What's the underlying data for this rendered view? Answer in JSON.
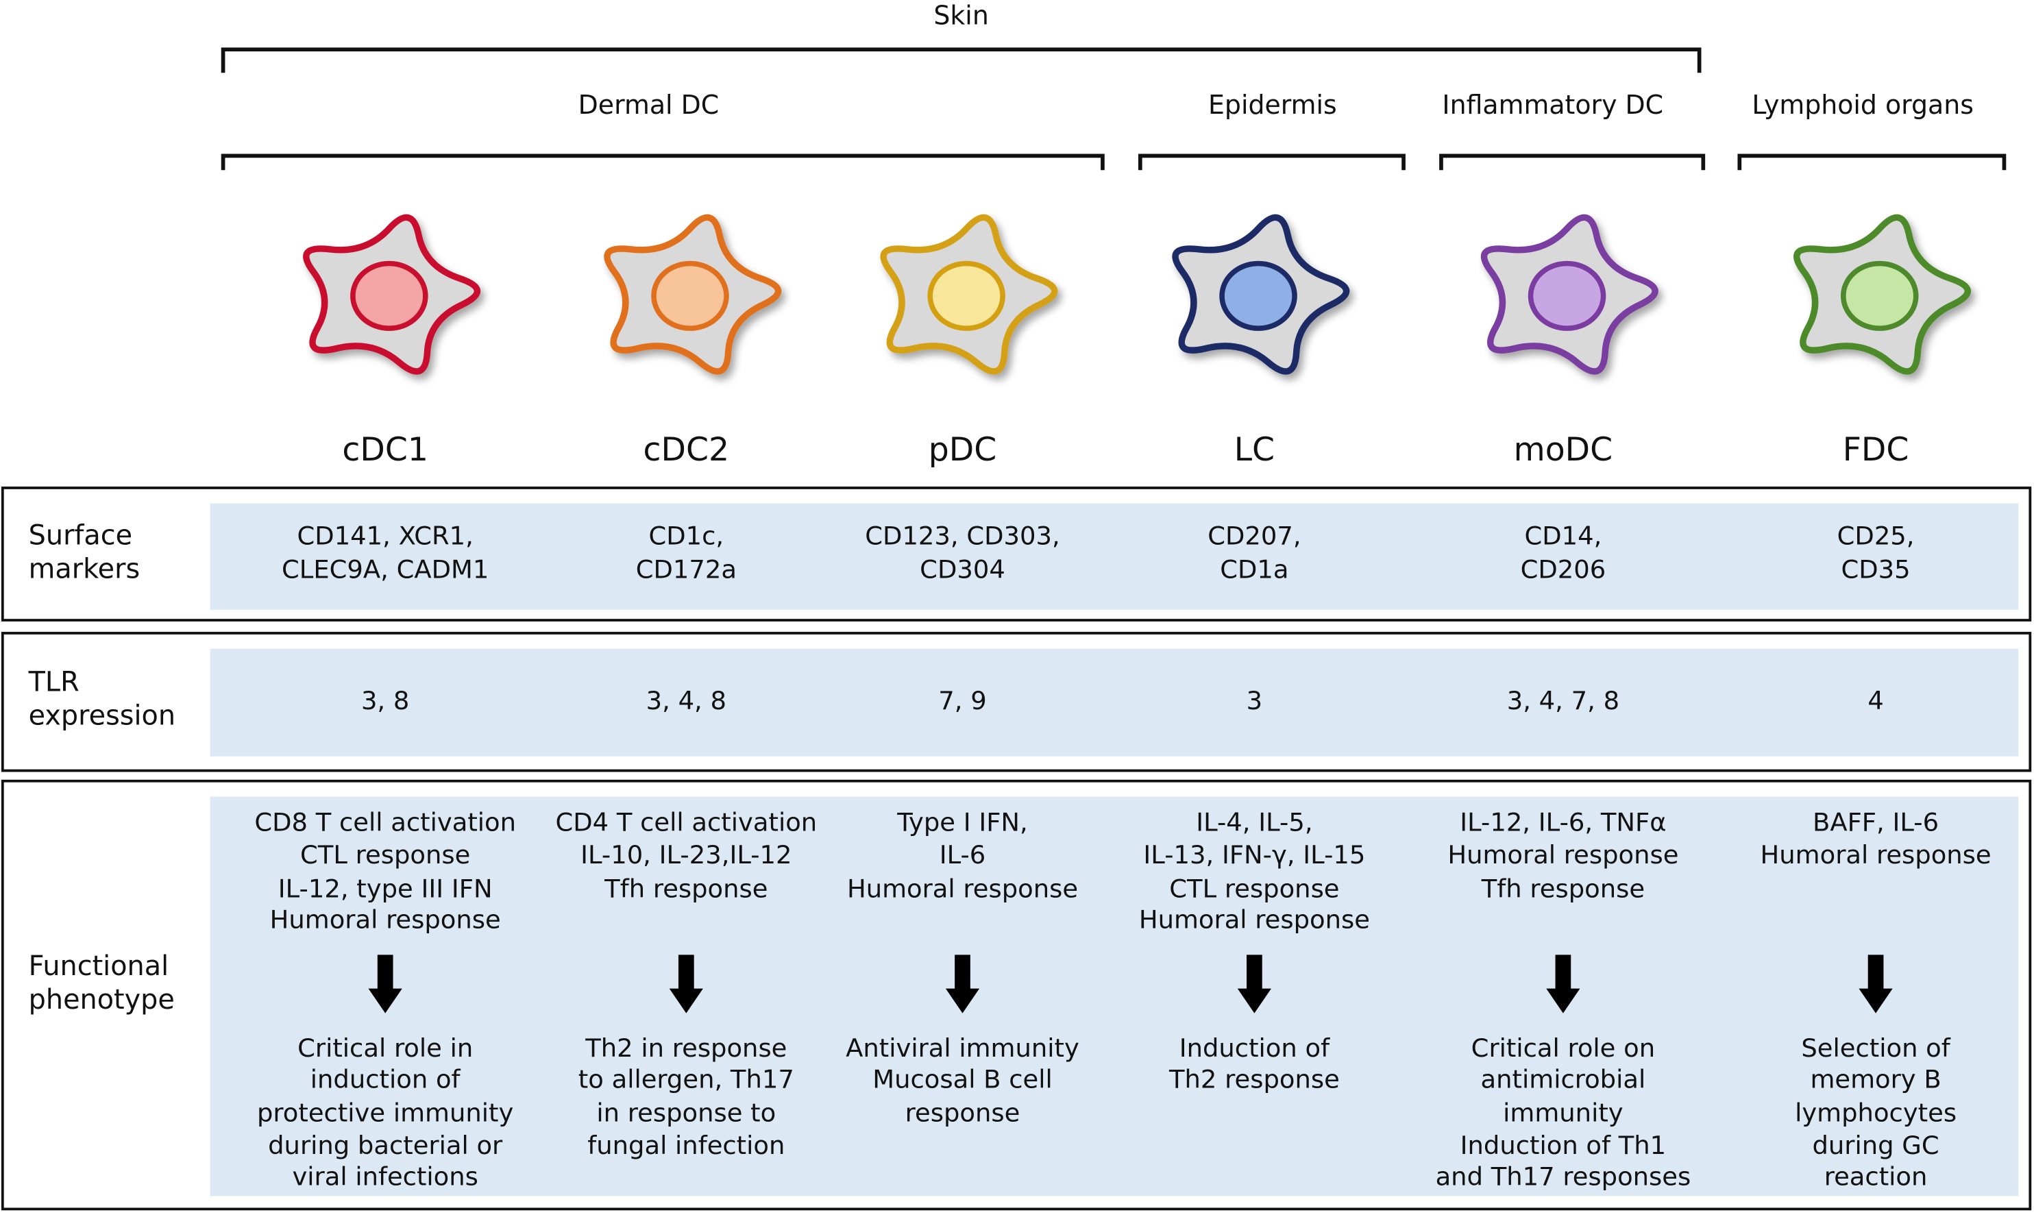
{
  "groups": [
    {
      "label": "Skin"
    },
    {
      "label": "Dermal DC"
    },
    {
      "label": "Epidermis"
    },
    {
      "label": "Inflammatory DC"
    },
    {
      "label": "Lymphoid organs"
    }
  ],
  "cells": [
    {
      "name": "cDC1",
      "color": "#c8102e",
      "nucleus": "#f4a6a6"
    },
    {
      "name": "cDC2",
      "color": "#e0701e",
      "nucleus": "#f8c49a"
    },
    {
      "name": "pDC",
      "color": "#d4a012",
      "nucleus": "#f8e69a"
    },
    {
      "name": "LC",
      "color": "#1c2a66",
      "nucleus": "#8fb0e6"
    },
    {
      "name": "moDC",
      "color": "#7a3ca0",
      "nucleus": "#c8a6e4"
    },
    {
      "name": "FDC",
      "color": "#4e8a2c",
      "nucleus": "#c6e6a6"
    }
  ],
  "rows": [
    {
      "label": [
        "Surface",
        "markers"
      ],
      "cells": [
        [
          "CD141, XCR1,",
          "CLEC9A, CADM1"
        ],
        [
          "CD1c,",
          "CD172a"
        ],
        [
          "CD123, CD303,",
          "CD304"
        ],
        [
          "CD207,",
          "CD1a"
        ],
        [
          "CD14,",
          "CD206"
        ],
        [
          "CD25,",
          "CD35"
        ]
      ]
    },
    {
      "label": [
        "TLR",
        "expression"
      ],
      "cells": [
        [
          "3, 8"
        ],
        [
          "3, 4, 8"
        ],
        [
          "7, 9"
        ],
        [
          "3"
        ],
        [
          "3, 4, 7, 8"
        ],
        [
          "4"
        ]
      ]
    },
    {
      "label": [
        "Functional",
        "phenotype"
      ],
      "cells": [
        {
          "top": [
            "CD8 T cell activation",
            "CTL response",
            "IL-12, type III IFN",
            "Humoral response"
          ],
          "bottom": [
            "Critical role in",
            "induction of",
            "protective immunity",
            "during bacterial or",
            "viral infections"
          ]
        },
        {
          "top": [
            "CD4 T cell activation",
            "IL-10, IL-23,IL-12",
            "Tfh response"
          ],
          "bottom": [
            "Th2 in response",
            "to allergen, Th17",
            "in response to",
            "fungal infection"
          ]
        },
        {
          "top": [
            "Type I IFN,",
            "IL-6",
            "Humoral response"
          ],
          "bottom": [
            "Antiviral immunity",
            "Mucosal B cell",
            "response"
          ]
        },
        {
          "top": [
            "IL-4, IL-5,",
            "IL-13, IFN-γ, IL-15",
            "CTL response",
            "Humoral response"
          ],
          "bottom": [
            "Induction of",
            "Th2 response"
          ]
        },
        {
          "top": [
            "IL-12, IL-6, TNFα",
            "Humoral response",
            "Tfh response"
          ],
          "bottom": [
            "Critical role on",
            "antimicrobial",
            "immunity",
            "Induction of Th1",
            "and Th17 responses"
          ]
        },
        {
          "top": [
            "BAFF, IL-6",
            "Humoral response"
          ],
          "bottom": [
            "Selection of",
            "memory B",
            "lymphocytes",
            "during GC",
            "reaction"
          ]
        }
      ]
    }
  ]
}
